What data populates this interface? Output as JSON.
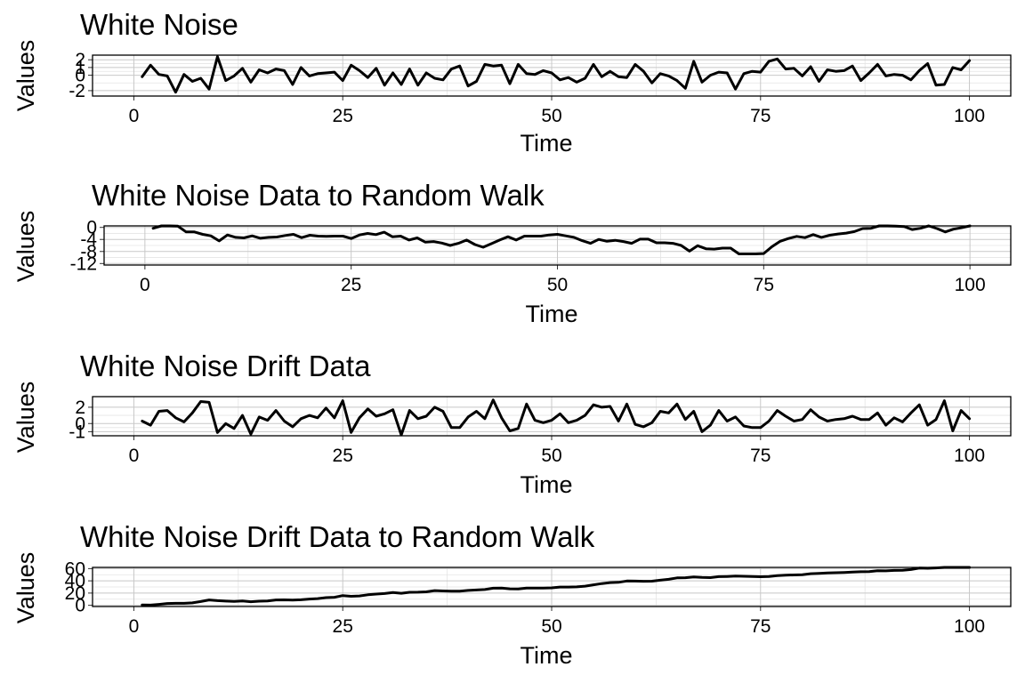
{
  "chart_data": [
    {
      "type": "line",
      "title": "White Noise",
      "xlabel": "Time",
      "ylabel": "Values",
      "xlim": [
        0,
        100
      ],
      "ylim": [
        -2.7,
        2.6
      ],
      "x_ticks": [
        0,
        25,
        50,
        75,
        100
      ],
      "y_ticks": [
        -2,
        0,
        1,
        2
      ],
      "grid": true,
      "x": [
        1,
        2,
        3,
        4,
        5,
        6,
        7,
        8,
        9,
        10,
        11,
        12,
        13,
        14,
        15,
        16,
        17,
        18,
        19,
        20,
        21,
        22,
        23,
        24,
        25,
        26,
        27,
        28,
        29,
        30,
        31,
        32,
        33,
        34,
        35,
        36,
        37,
        38,
        39,
        40,
        41,
        42,
        43,
        44,
        45,
        46,
        47,
        48,
        49,
        50,
        51,
        52,
        53,
        54,
        55,
        56,
        57,
        58,
        59,
        60,
        61,
        62,
        63,
        64,
        65,
        66,
        67,
        68,
        69,
        70,
        71,
        72,
        73,
        74,
        75,
        76,
        77,
        78,
        79,
        80,
        81,
        82,
        83,
        84,
        85,
        86,
        87,
        88,
        89,
        90,
        91,
        92,
        93,
        94,
        95,
        96,
        97,
        98,
        99,
        100
      ],
      "series": [
        {
          "values": [
            -0.2,
            1.3,
            0.1,
            -0.1,
            -2.2,
            0.1,
            -0.8,
            -0.4,
            -1.8,
            2.4,
            -0.7,
            -0.1,
            0.9,
            -0.9,
            0.7,
            0.3,
            0.8,
            0.6,
            -1.2,
            1,
            -0.1,
            0.2,
            0.3,
            0.4,
            -0.7,
            1.3,
            0.6,
            -0.3,
            0.9,
            -1.3,
            0.3,
            -1.2,
            0.8,
            -1.3,
            0.3,
            -0.4,
            -0.6,
            0.8,
            1.2,
            -1.4,
            -0.8,
            1.4,
            1.2,
            1.3,
            -1.1,
            1.4,
            0.2,
            0.1,
            0.6,
            0.3,
            -0.6,
            -0.3,
            -0.9,
            -0.4,
            1.4,
            -0.2,
            0.5,
            -0.2,
            -0.3,
            1.4,
            0.5,
            -1,
            0.2,
            -0.1,
            -0.7,
            -1.7,
            1.8,
            -0.9,
            0,
            0.4,
            0.3,
            -1.8,
            0.2,
            0.5,
            0.4,
            1.8,
            2.1,
            0.8,
            0.9,
            -0.1,
            1.1,
            -0.8,
            0.7,
            0.5,
            0.6,
            1.2,
            -0.7,
            0.3,
            1.4,
            -0.1,
            0.1,
            0,
            -0.6,
            0.6,
            1.5,
            -1.3,
            -1.2,
            1,
            0.7,
            1.9
          ]
        }
      ]
    },
    {
      "type": "line",
      "title": "White Noise Data to Random Walk",
      "xlabel": "Time",
      "ylabel": "Values",
      "xlim": [
        0,
        100
      ],
      "ylim": [
        -12.5,
        0.5
      ],
      "x_ticks": [
        0,
        25,
        50,
        75,
        100
      ],
      "y_ticks": [
        -12,
        -8,
        -4,
        0
      ],
      "grid": true,
      "x": [
        1,
        2,
        3,
        4,
        5,
        6,
        7,
        8,
        9,
        10,
        11,
        12,
        13,
        14,
        15,
        16,
        17,
        18,
        19,
        20,
        21,
        22,
        23,
        24,
        25,
        26,
        27,
        28,
        29,
        30,
        31,
        32,
        33,
        34,
        35,
        36,
        37,
        38,
        39,
        40,
        41,
        42,
        43,
        44,
        45,
        46,
        47,
        48,
        49,
        50,
        51,
        52,
        53,
        54,
        55,
        56,
        57,
        58,
        59,
        60,
        61,
        62,
        63,
        64,
        65,
        66,
        67,
        68,
        69,
        70,
        71,
        72,
        73,
        74,
        75,
        76,
        77,
        78,
        79,
        80,
        81,
        82,
        83,
        84,
        85,
        86,
        87,
        88,
        89,
        90,
        91,
        92,
        93,
        94,
        95,
        96,
        97,
        98,
        99,
        100
      ],
      "series": [
        {
          "values": [
            -0.3,
            0.8,
            0.7,
            0.4,
            -1.5,
            -1.5,
            -2.3,
            -2.8,
            -4.5,
            -2.5,
            -3.3,
            -3.5,
            -2.8,
            -3.6,
            -3.3,
            -3.2,
            -2.7,
            -2.3,
            -3.4,
            -2.6,
            -2.9,
            -3,
            -2.9,
            -2.9,
            -3.7,
            -2.5,
            -2,
            -2.4,
            -1.6,
            -3.1,
            -2.9,
            -4.2,
            -3.5,
            -4.9,
            -4.7,
            -5.2,
            -6,
            -5.3,
            -4.2,
            -5.7,
            -6.6,
            -5.4,
            -4.2,
            -3.1,
            -4.2,
            -2.9,
            -2.9,
            -2.9,
            -2.5,
            -2.3,
            -2.8,
            -3.3,
            -4.4,
            -5.3,
            -4,
            -4.6,
            -4.3,
            -4.7,
            -5.3,
            -3.9,
            -3.9,
            -5.1,
            -5.1,
            -5.3,
            -6,
            -7.9,
            -6.1,
            -7.1,
            -7.2,
            -6.9,
            -6.9,
            -8.8,
            -8.8,
            -8.8,
            -8.7,
            -6.4,
            -4.6,
            -3.7,
            -3,
            -3.4,
            -2.4,
            -3.3,
            -2.6,
            -2.2,
            -1.9,
            -1.4,
            -0.4,
            -0.3,
            0.8,
            0.5,
            0.4,
            0.3,
            -0.7,
            -0.3,
            1,
            -0.4,
            -1.5,
            -0.6,
            -0.1,
            1.9
          ]
        }
      ]
    },
    {
      "type": "line",
      "title": "White Noise Drift Data",
      "xlabel": "Time",
      "ylabel": "Values",
      "xlim": [
        0,
        100
      ],
      "ylim": [
        -1.5,
        3.3
      ],
      "x_ticks": [
        0,
        25,
        50,
        75,
        100
      ],
      "y_ticks": [
        -1,
        0,
        2
      ],
      "grid": true,
      "x": [
        1,
        2,
        3,
        4,
        5,
        6,
        7,
        8,
        9,
        10,
        11,
        12,
        13,
        14,
        15,
        16,
        17,
        18,
        19,
        20,
        21,
        22,
        23,
        24,
        25,
        26,
        27,
        28,
        29,
        30,
        31,
        32,
        33,
        34,
        35,
        36,
        37,
        38,
        39,
        40,
        41,
        42,
        43,
        44,
        45,
        46,
        47,
        48,
        49,
        50,
        51,
        52,
        53,
        54,
        55,
        56,
        57,
        58,
        59,
        60,
        61,
        62,
        63,
        64,
        65,
        66,
        67,
        68,
        69,
        70,
        71,
        72,
        73,
        74,
        75,
        76,
        77,
        78,
        79,
        80,
        81,
        82,
        83,
        84,
        85,
        86,
        87,
        88,
        89,
        90,
        91,
        92,
        93,
        94,
        95,
        96,
        97,
        98,
        99,
        100
      ],
      "series": [
        {
          "values": [
            0.3,
            -0.2,
            1.5,
            1.6,
            0.7,
            0.2,
            1.3,
            2.7,
            2.6,
            -1.1,
            0,
            -0.6,
            1,
            -1.3,
            0.8,
            0.4,
            1.6,
            0.3,
            -0.4,
            0.6,
            1,
            0.7,
            1.9,
            0.7,
            2.8,
            -1.1,
            0.7,
            1.8,
            0.9,
            1.2,
            1.7,
            -1.4,
            1.6,
            0.6,
            0.9,
            2.0,
            1.5,
            -0.5,
            -0.5,
            0.8,
            1.5,
            0.6,
            2.9,
            0.7,
            -0.9,
            -0.6,
            2.4,
            0.4,
            0.1,
            0.4,
            1.2,
            0.1,
            0.4,
            1.0,
            2.3,
            2.0,
            2.1,
            0.3,
            2.4,
            -0.1,
            -0.4,
            0.1,
            1.5,
            1.3,
            2.4,
            0.5,
            1.5,
            -1.0,
            -0.2,
            1.6,
            0.3,
            0.8,
            -0.3,
            -0.5,
            -0.5,
            0.3,
            1.6,
            0.9,
            0.3,
            0.5,
            1.7,
            0.8,
            0.3,
            0.5,
            0.6,
            0.9,
            0.5,
            0.5,
            1.3,
            -0.2,
            0.7,
            0.2,
            1.3,
            2.3,
            -0.2,
            0.5,
            2.8,
            -0.9,
            1.6,
            0.6
          ]
        }
      ]
    },
    {
      "type": "line",
      "title": "White Noise Drift Data to Random Walk",
      "xlabel": "Time",
      "ylabel": "Values",
      "xlim": [
        0,
        100
      ],
      "ylim": [
        -2,
        62
      ],
      "x_ticks": [
        0,
        25,
        50,
        75,
        100
      ],
      "y_ticks": [
        0,
        20,
        40,
        60
      ],
      "grid": true,
      "x": [
        1,
        2,
        3,
        4,
        5,
        6,
        7,
        8,
        9,
        10,
        11,
        12,
        13,
        14,
        15,
        16,
        17,
        18,
        19,
        20,
        21,
        22,
        23,
        24,
        25,
        26,
        27,
        28,
        29,
        30,
        31,
        32,
        33,
        34,
        35,
        36,
        37,
        38,
        39,
        40,
        41,
        42,
        43,
        44,
        45,
        46,
        47,
        48,
        49,
        50,
        51,
        52,
        53,
        54,
        55,
        56,
        57,
        58,
        59,
        60,
        61,
        62,
        63,
        64,
        65,
        66,
        67,
        68,
        69,
        70,
        71,
        72,
        73,
        74,
        75,
        76,
        77,
        78,
        79,
        80,
        81,
        82,
        83,
        84,
        85,
        86,
        87,
        88,
        89,
        90,
        91,
        92,
        93,
        94,
        95,
        96,
        97,
        98,
        99,
        100
      ],
      "series": [
        {
          "values": [
            0.6,
            0.4,
            1.5,
            3,
            3.3,
            3.3,
            4,
            6.2,
            8.7,
            7.6,
            6.9,
            6.3,
            7.2,
            5.9,
            6.8,
            7.1,
            8.8,
            8.9,
            8.5,
            9.1,
            10.2,
            10.9,
            12.6,
            13.1,
            15.9,
            14.8,
            15.3,
            17.2,
            18.3,
            19.3,
            21,
            19.6,
            21.3,
            21.4,
            22,
            24,
            23.5,
            23,
            23.2,
            24.4,
            25.1,
            25.8,
            27.9,
            28.3,
            27,
            26.6,
            28.3,
            28.1,
            28.2,
            28.6,
            29.8,
            29.8,
            30.2,
            31.3,
            33.5,
            35.5,
            37.1,
            37.6,
            39.7,
            39.6,
            39.3,
            39.5,
            41.1,
            42.5,
            44.8,
            45.1,
            46.5,
            45.5,
            45.2,
            46.9,
            47.1,
            47.8,
            47.5,
            47.1,
            46.7,
            47,
            48.6,
            49.4,
            49.7,
            50,
            51.7,
            52.3,
            52.8,
            53.2,
            53.7,
            54.4,
            54.9,
            55.2,
            56.5,
            56.3,
            57,
            57.3,
            58.5,
            60.8,
            60.6,
            61.1,
            63.9,
            63,
            64.6,
            65.1
          ]
        }
      ]
    }
  ]
}
